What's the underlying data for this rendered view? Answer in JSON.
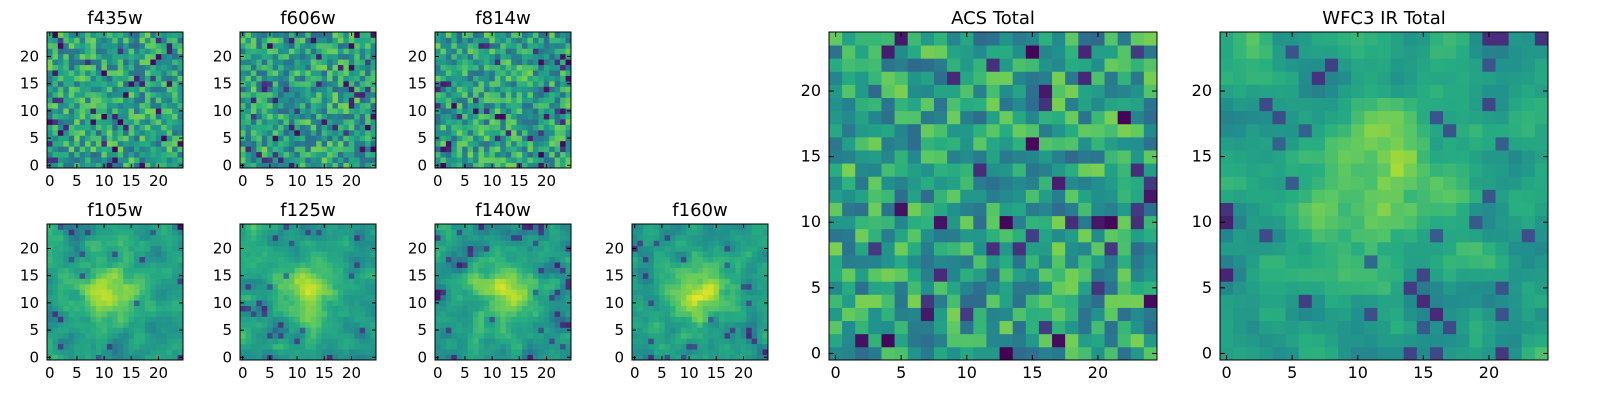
{
  "chart_data": [
    {
      "type": "heatmap",
      "title": "f435w",
      "grid": false,
      "colormap": "viridis",
      "xlim": [
        0,
        24
      ],
      "ylim": [
        0,
        24
      ],
      "x_ticks": [
        "0",
        "5",
        "10",
        "15",
        "20"
      ],
      "y_ticks": [
        "0",
        "5",
        "10",
        "15",
        "20"
      ],
      "peak": null,
      "seed": 11
    },
    {
      "type": "heatmap",
      "title": "f606w",
      "grid": false,
      "colormap": "viridis",
      "xlim": [
        0,
        24
      ],
      "ylim": [
        0,
        24
      ],
      "x_ticks": [
        "0",
        "5",
        "10",
        "15",
        "20"
      ],
      "y_ticks": [
        "0",
        "5",
        "10",
        "15",
        "20"
      ],
      "peak": null,
      "seed": 23
    },
    {
      "type": "heatmap",
      "title": "f814w",
      "grid": false,
      "colormap": "viridis",
      "xlim": [
        0,
        24
      ],
      "ylim": [
        0,
        24
      ],
      "x_ticks": [
        "0",
        "5",
        "10",
        "15",
        "20"
      ],
      "y_ticks": [
        "0",
        "5",
        "10",
        "15",
        "20"
      ],
      "peak": null,
      "seed": 37
    },
    {
      "type": "heatmap",
      "title": "f105w",
      "grid": false,
      "colormap": "viridis",
      "xlim": [
        0,
        24
      ],
      "ylim": [
        0,
        24
      ],
      "x_ticks": [
        "0",
        "5",
        "10",
        "15",
        "20"
      ],
      "y_ticks": [
        "0",
        "5",
        "10",
        "15",
        "20"
      ],
      "peak": [
        11,
        12
      ],
      "seed": 41
    },
    {
      "type": "heatmap",
      "title": "f125w",
      "grid": false,
      "colormap": "viridis",
      "xlim": [
        0,
        24
      ],
      "ylim": [
        0,
        24
      ],
      "x_ticks": [
        "0",
        "5",
        "10",
        "15",
        "20"
      ],
      "y_ticks": [
        "0",
        "5",
        "10",
        "15",
        "20"
      ],
      "peak": [
        12,
        12
      ],
      "seed": 53
    },
    {
      "type": "heatmap",
      "title": "f140w",
      "grid": false,
      "colormap": "viridis",
      "xlim": [
        0,
        24
      ],
      "ylim": [
        0,
        24
      ],
      "x_ticks": [
        "0",
        "5",
        "10",
        "15",
        "20"
      ],
      "y_ticks": [
        "0",
        "5",
        "10",
        "15",
        "20"
      ],
      "peak": [
        12,
        12
      ],
      "seed": 67
    },
    {
      "type": "heatmap",
      "title": "f160w",
      "grid": false,
      "colormap": "viridis",
      "xlim": [
        0,
        24
      ],
      "ylim": [
        0,
        24
      ],
      "x_ticks": [
        "0",
        "5",
        "10",
        "15",
        "20"
      ],
      "y_ticks": [
        "0",
        "5",
        "10",
        "15",
        "20"
      ],
      "peak": [
        12,
        12
      ],
      "seed": 79
    },
    {
      "type": "heatmap",
      "title": "ACS Total",
      "grid": false,
      "colormap": "viridis",
      "xlim": [
        0,
        24
      ],
      "ylim": [
        0,
        24
      ],
      "x_ticks": [
        "0",
        "5",
        "10",
        "15",
        "20"
      ],
      "y_ticks": [
        "0",
        "5",
        "10",
        "15",
        "20"
      ],
      "peak": null,
      "seed": 97
    },
    {
      "type": "heatmap",
      "title": "WFC3 IR Total",
      "grid": false,
      "colormap": "viridis",
      "xlim": [
        0,
        24
      ],
      "ylim": [
        0,
        24
      ],
      "x_ticks": [
        "0",
        "5",
        "10",
        "15",
        "20"
      ],
      "y_ticks": [
        "0",
        "5",
        "10",
        "15",
        "20"
      ],
      "peak": [
        12,
        13
      ],
      "seed": 131
    }
  ]
}
